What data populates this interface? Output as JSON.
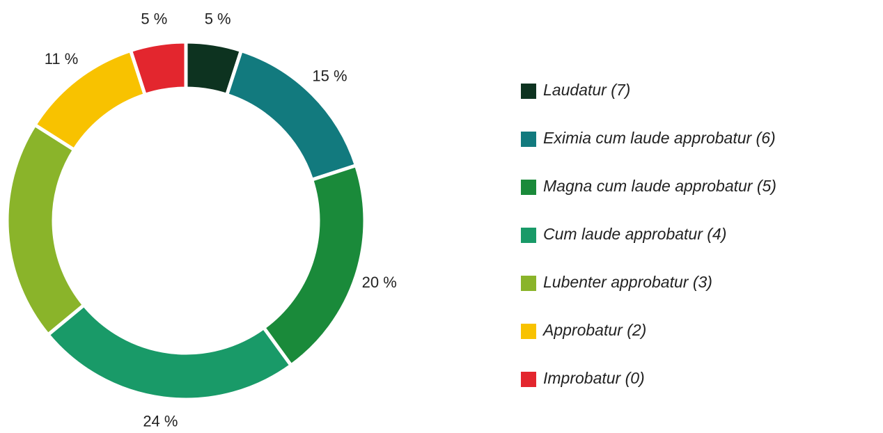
{
  "chart_data": {
    "type": "donut",
    "categories": [
      "Laudatur (7)",
      "Eximia cum laude approbatur (6)",
      "Magna cum laude approbatur (5)",
      "Cum laude approbatur (4)",
      "Lubenter approbatur (3)",
      "Approbatur (2)",
      "Improbatur (0)"
    ],
    "values": [
      5,
      15,
      20,
      24,
      20,
      11,
      5
    ],
    "value_labels": [
      "5 %",
      "15 %",
      "20 %",
      "24 %",
      null,
      "11 %",
      "5 %"
    ],
    "colors": [
      "#0d3320",
      "#127a7e",
      "#1a8a3a",
      "#199a68",
      "#8ab42a",
      "#f8c200",
      "#e3262e"
    ],
    "legend": "right"
  }
}
